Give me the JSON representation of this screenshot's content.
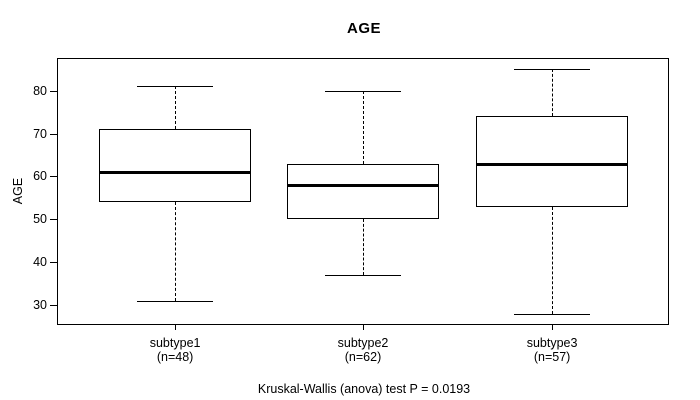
{
  "title": "AGE",
  "caption": "Kruskal-Wallis (anova) test P = 0.0193",
  "colors": {
    "foreground": "#000000",
    "background": "#ffffff",
    "box_fill": "#ffffff",
    "median": "#000000"
  },
  "chart_data": {
    "type": "boxplot",
    "title": "AGE",
    "xlabel": "",
    "ylabel": "AGE",
    "ylim": [
      25.6,
      87.4
    ],
    "yticks": [
      30,
      40,
      50,
      60,
      70,
      80
    ],
    "grid": false,
    "legend": "none",
    "categories": [
      "subtype1",
      "subtype2",
      "subtype3"
    ],
    "category_sublabels": [
      "(n=48)",
      "(n=62)",
      "(n=57)"
    ],
    "series": [
      {
        "name": "subtype1",
        "n": 48,
        "min": 31,
        "q1": 54,
        "median": 61,
        "q3": 71,
        "max": 81
      },
      {
        "name": "subtype2",
        "n": 62,
        "min": 37,
        "q1": 50,
        "median": 58,
        "q3": 63,
        "max": 80
      },
      {
        "name": "subtype3",
        "n": 57,
        "min": 28,
        "q1": 53,
        "median": 63,
        "q3": 74,
        "max": 85
      }
    ],
    "annotation": "Kruskal-Wallis (anova) test P = 0.0193"
  }
}
